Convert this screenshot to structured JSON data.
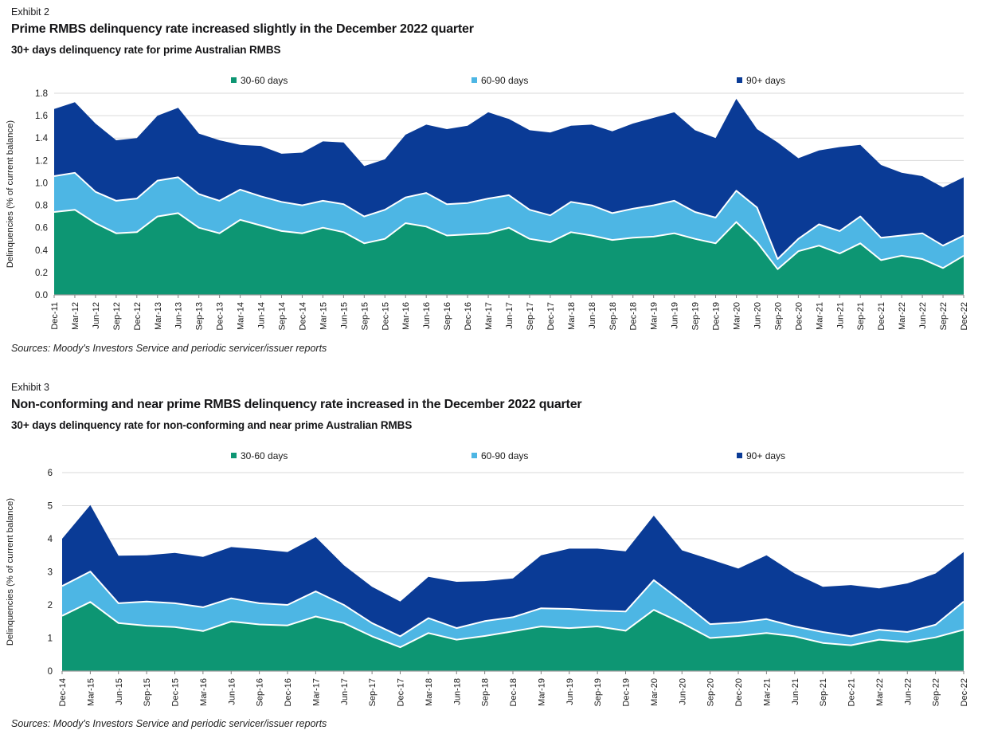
{
  "exhibits": [
    {
      "label": "Exhibit 2",
      "title": "Prime RMBS delinquency rate increased slightly in the December 2022 quarter",
      "subtitle": "30+ days delinquency rate for prime Australian RMBS",
      "sources": "Sources: Moody's Investors Service and periodic servicer/issuer reports"
    },
    {
      "label": "Exhibit 3",
      "title": "Non-conforming and near prime RMBS delinquency rate increased in the December 2022 quarter",
      "subtitle": "30+ days delinquency rate for non-conforming and near prime Australian RMBS",
      "sources": "Sources: Moody's Investors Service and periodic servicer/issuer reports"
    }
  ],
  "colors": {
    "days_30_60": "#0d9673",
    "days_60_90": "#4db6e4",
    "days_90_plus": "#0a3b96",
    "gridline": "#d9d9d9",
    "axis": "#9b9b9b",
    "separator": "#ffffff"
  },
  "chart_data": [
    {
      "type": "area",
      "stacked": true,
      "title": "30+ days delinquency rate for prime Australian RMBS",
      "ylabel": "Delinquencies (% of current balance)",
      "ylim": [
        0,
        1.8
      ],
      "ytick_labels": [
        "0.0",
        "0.2",
        "0.4",
        "0.6",
        "0.8",
        "1.0",
        "1.2",
        "1.4",
        "1.6",
        "1.8"
      ],
      "grid": true,
      "legend_position": "top",
      "categories": [
        "Dec-11",
        "Mar-12",
        "Jun-12",
        "Sep-12",
        "Dec-12",
        "Mar-13",
        "Jun-13",
        "Sep-13",
        "Dec-13",
        "Mar-14",
        "Jun-14",
        "Sep-14",
        "Dec-14",
        "Mar-15",
        "Jun-15",
        "Sep-15",
        "Dec-15",
        "Mar-16",
        "Jun-16",
        "Sep-16",
        "Dec-16",
        "Mar-17",
        "Jun-17",
        "Sep-17",
        "Dec-17",
        "Mar-18",
        "Jun-18",
        "Sep-18",
        "Dec-18",
        "Mar-19",
        "Jun-19",
        "Sep-19",
        "Dec-19",
        "Mar-20",
        "Jun-20",
        "Sep-20",
        "Dec-20",
        "Mar-21",
        "Jun-21",
        "Sep-21",
        "Dec-21",
        "Mar-22",
        "Jun-22",
        "Sep-22",
        "Dec-22"
      ],
      "series": [
        {
          "name": "30-60 days",
          "color": "#0d9673",
          "values": [
            0.74,
            0.76,
            0.64,
            0.55,
            0.56,
            0.7,
            0.73,
            0.6,
            0.55,
            0.67,
            0.62,
            0.57,
            0.55,
            0.6,
            0.56,
            0.46,
            0.5,
            0.64,
            0.61,
            0.53,
            0.54,
            0.55,
            0.6,
            0.5,
            0.47,
            0.56,
            0.53,
            0.49,
            0.51,
            0.52,
            0.55,
            0.5,
            0.46,
            0.65,
            0.47,
            0.23,
            0.39,
            0.44,
            0.37,
            0.46,
            0.31,
            0.35,
            0.32,
            0.24,
            0.35
          ]
        },
        {
          "name": "60-90 days",
          "color": "#4db6e4",
          "values": [
            0.32,
            0.33,
            0.28,
            0.29,
            0.3,
            0.32,
            0.32,
            0.3,
            0.29,
            0.27,
            0.26,
            0.26,
            0.25,
            0.24,
            0.25,
            0.24,
            0.26,
            0.23,
            0.3,
            0.28,
            0.28,
            0.31,
            0.29,
            0.26,
            0.24,
            0.27,
            0.27,
            0.24,
            0.26,
            0.28,
            0.29,
            0.24,
            0.23,
            0.28,
            0.31,
            0.09,
            0.11,
            0.19,
            0.2,
            0.24,
            0.2,
            0.18,
            0.23,
            0.2,
            0.18
          ]
        },
        {
          "name": "90+ days",
          "color": "#0a3b96",
          "values": [
            0.6,
            0.63,
            0.61,
            0.54,
            0.54,
            0.58,
            0.62,
            0.54,
            0.54,
            0.4,
            0.45,
            0.43,
            0.47,
            0.53,
            0.55,
            0.45,
            0.45,
            0.56,
            0.61,
            0.67,
            0.69,
            0.77,
            0.68,
            0.71,
            0.74,
            0.68,
            0.72,
            0.73,
            0.76,
            0.78,
            0.79,
            0.73,
            0.71,
            0.82,
            0.7,
            1.04,
            0.72,
            0.66,
            0.75,
            0.64,
            0.65,
            0.56,
            0.51,
            0.52,
            0.52
          ]
        }
      ]
    },
    {
      "type": "area",
      "stacked": true,
      "title": "30+ days delinquency rate for non-conforming and near prime Australian RMBS",
      "ylabel": "Delinquencies (% of current balance)",
      "ylim": [
        0,
        6
      ],
      "ytick_labels": [
        "0",
        "1",
        "2",
        "3",
        "4",
        "5",
        "6"
      ],
      "grid": true,
      "legend_position": "top",
      "categories": [
        "Dec-14",
        "Mar-15",
        "Jun-15",
        "Sep-15",
        "Dec-15",
        "Mar-16",
        "Jun-16",
        "Sep-16",
        "Dec-16",
        "Mar-17",
        "Jun-17",
        "Sep-17",
        "Dec-17",
        "Mar-18",
        "Jun-18",
        "Sep-18",
        "Dec-18",
        "Mar-19",
        "Jun-19",
        "Sep-19",
        "Dec-19",
        "Mar-20",
        "Jun-20",
        "Sep-20",
        "Dec-20",
        "Mar-21",
        "Jun-21",
        "Sep-21",
        "Dec-21",
        "Mar-22",
        "Jun-22",
        "Sep-22",
        "Dec-22"
      ],
      "series": [
        {
          "name": "30-60 days",
          "color": "#0d9673",
          "values": [
            1.67,
            2.09,
            1.45,
            1.37,
            1.33,
            1.21,
            1.5,
            1.41,
            1.38,
            1.65,
            1.45,
            1.05,
            0.72,
            1.15,
            0.95,
            1.06,
            1.2,
            1.35,
            1.3,
            1.35,
            1.22,
            1.85,
            1.45,
            1.0,
            1.06,
            1.15,
            1.05,
            0.85,
            0.78,
            0.95,
            0.88,
            1.02,
            1.25
          ]
        },
        {
          "name": "60-90 days",
          "color": "#4db6e4",
          "values": [
            0.9,
            0.92,
            0.6,
            0.73,
            0.72,
            0.72,
            0.7,
            0.64,
            0.62,
            0.76,
            0.55,
            0.4,
            0.33,
            0.45,
            0.35,
            0.45,
            0.43,
            0.55,
            0.58,
            0.48,
            0.58,
            0.9,
            0.65,
            0.42,
            0.41,
            0.42,
            0.3,
            0.33,
            0.27,
            0.3,
            0.3,
            0.38,
            0.85
          ]
        },
        {
          "name": "90+ days",
          "color": "#0a3b96",
          "values": [
            1.43,
            2.01,
            1.44,
            1.4,
            1.52,
            1.52,
            1.55,
            1.63,
            1.6,
            1.64,
            1.2,
            1.1,
            1.05,
            1.25,
            1.4,
            1.21,
            1.17,
            1.6,
            1.82,
            1.87,
            1.82,
            1.95,
            1.55,
            1.96,
            1.63,
            1.93,
            1.6,
            1.37,
            1.55,
            1.25,
            1.47,
            1.55,
            1.5
          ]
        }
      ]
    }
  ]
}
